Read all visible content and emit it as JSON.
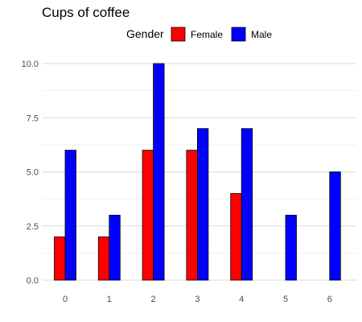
{
  "chart_data": {
    "type": "bar",
    "title": "Cups of coffee",
    "legend": {
      "title": "Gender",
      "position": "top"
    },
    "categories": [
      "0",
      "1",
      "2",
      "3",
      "4",
      "5",
      "6"
    ],
    "series": [
      {
        "name": "Female",
        "color": "#ff0000",
        "values": [
          2,
          2,
          6,
          6,
          4,
          0,
          0
        ]
      },
      {
        "name": "Male",
        "color": "#0000ff",
        "values": [
          6,
          3,
          10,
          7,
          7,
          3,
          5
        ]
      }
    ],
    "yticks": [
      "0.0",
      "2.5",
      "5.0",
      "7.5",
      "10.0"
    ],
    "ytick_values": [
      0,
      2.5,
      5,
      7.5,
      10
    ],
    "ylim": [
      0,
      10
    ],
    "xlabel": "",
    "ylabel": "",
    "grid": true
  }
}
